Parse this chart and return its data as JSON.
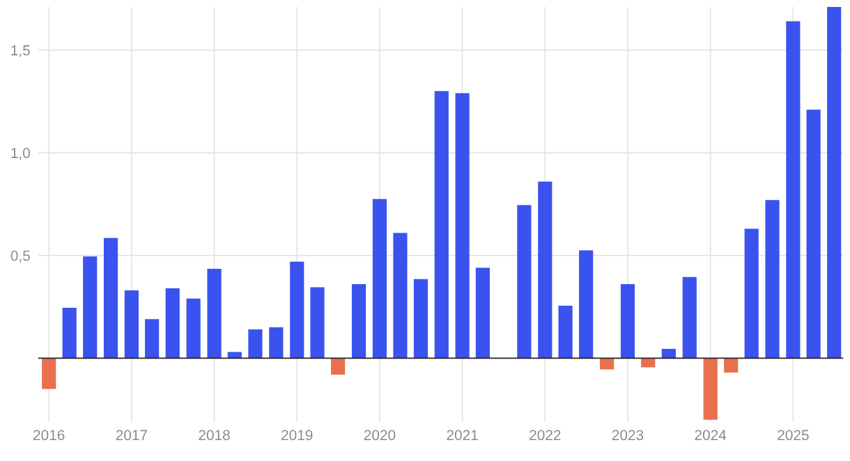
{
  "chart_data": {
    "type": "bar",
    "x": [
      "2016-01",
      "2016-04",
      "2016-07",
      "2016-10",
      "2017-01",
      "2017-04",
      "2017-07",
      "2017-10",
      "2018-01",
      "2018-04",
      "2018-07",
      "2018-10",
      "2019-01",
      "2019-04",
      "2019-07",
      "2019-10",
      "2020-01",
      "2020-04",
      "2020-07",
      "2020-10",
      "2021-01",
      "2021-04",
      "2021-07",
      "2021-10",
      "2022-01",
      "2022-04",
      "2022-07",
      "2022-10",
      "2023-01",
      "2023-04",
      "2023-07",
      "2023-10",
      "2024-01",
      "2024-04",
      "2024-07",
      "2024-10",
      "2025-01",
      "2025-04",
      "2025-07"
    ],
    "values": [
      -0.15,
      0.245,
      0.495,
      0.585,
      0.33,
      0.19,
      0.34,
      0.29,
      0.435,
      0.03,
      0.14,
      0.15,
      0.47,
      0.345,
      -0.08,
      0.36,
      0.775,
      0.61,
      0.385,
      1.3,
      1.29,
      0.44,
      0,
      0.745,
      0.86,
      0.255,
      0.525,
      -0.055,
      0.36,
      -0.045,
      0.045,
      0.395,
      -0.3,
      -0.07,
      0.63,
      0.77,
      1.64,
      1.21,
      1.71
    ],
    "colors": [
      "#e8704f",
      "#3a53ee",
      "#3a53ee",
      "#3a53ee",
      "#3a53ee",
      "#3a53ee",
      "#3a53ee",
      "#3a53ee",
      "#3a53ee",
      "#3a53ee",
      "#3a53ee",
      "#3a53ee",
      "#3a53ee",
      "#3a53ee",
      "#e8704f",
      "#3a53ee",
      "#3a53ee",
      "#3a53ee",
      "#3a53ee",
      "#3a53ee",
      "#3a53ee",
      "#3a53ee",
      "#3a53ee",
      "#3a53ee",
      "#3a53ee",
      "#3a53ee",
      "#3a53ee",
      "#e8704f",
      "#3a53ee",
      "#e8704f",
      "#3a53ee",
      "#3a53ee",
      "#e8704f",
      "#e8704f",
      "#3a53ee",
      "#3a53ee",
      "#3a53ee",
      "#3a53ee",
      "#3a53ee"
    ],
    "xlim": [
      "2015-11-15",
      "2025-08-10"
    ],
    "xticks": [
      "2016",
      "2017",
      "2018",
      "2019",
      "2020",
      "2021",
      "2022",
      "2023",
      "2024",
      "2025"
    ],
    "ylim": [
      -0.31,
      1.71
    ],
    "yticks": [
      {
        "value": 0.5,
        "label": "0,5"
      },
      {
        "value": 1.0,
        "label": "1,0"
      },
      {
        "value": 1.5,
        "label": "1,5"
      }
    ],
    "ref_lines": [
      {
        "axis": "y",
        "value": 0,
        "color": "#222222"
      }
    ],
    "grid": true
  }
}
